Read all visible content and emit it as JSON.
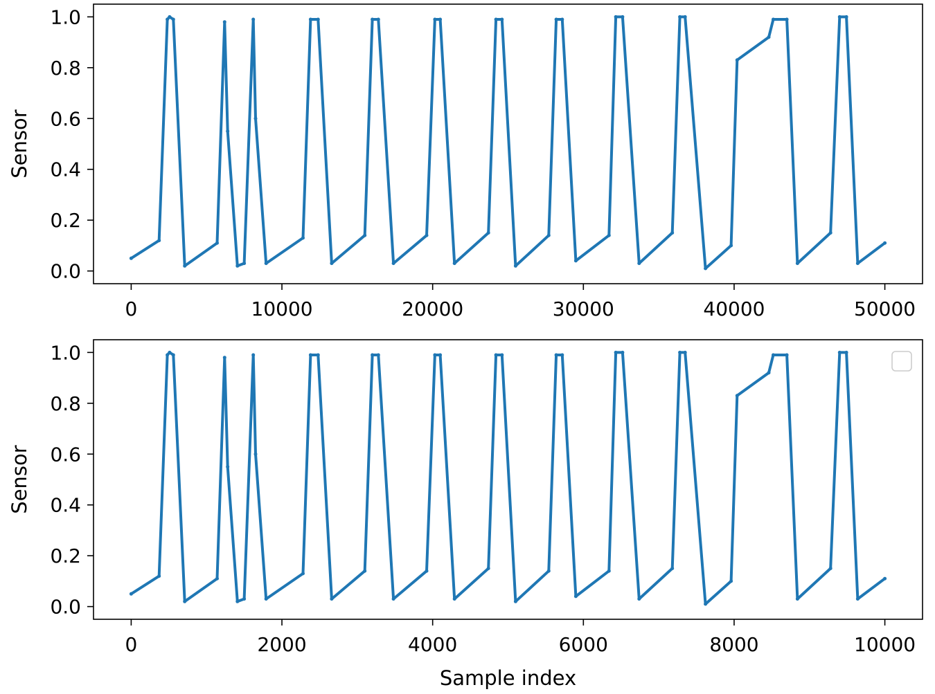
{
  "chart_data": [
    {
      "type": "line",
      "ylabel": "Sensor",
      "xlabel": "",
      "xlim": [
        -2500,
        52500
      ],
      "ylim": [
        -0.05,
        1.05
      ],
      "xticks": [
        0,
        10000,
        20000,
        30000,
        40000,
        50000
      ],
      "xtick_labels": [
        "0",
        "10000",
        "20000",
        "30000",
        "40000",
        "50000"
      ],
      "yticks": [
        0.0,
        0.2,
        0.4,
        0.6,
        0.8,
        1.0
      ],
      "ytick_labels": [
        "0.0",
        "0.2",
        "0.4",
        "0.6",
        "0.8",
        "1.0"
      ],
      "grid": false,
      "legend": false,
      "line_color": "#1f77b4",
      "series": [
        {
          "x": [
            0,
            1850,
            2400,
            2550,
            2800,
            3550,
            5700,
            6200,
            6400,
            7050,
            7500,
            8100,
            8250,
            8950,
            11400,
            11900,
            12400,
            13300,
            15500,
            16000,
            16400,
            17400,
            19600,
            20150,
            20500,
            21450,
            23700,
            24200,
            24600,
            25500,
            27700,
            28200,
            28600,
            29500,
            31700,
            32150,
            32600,
            33700,
            35900,
            36400,
            36750,
            38100,
            39800,
            40200,
            42300,
            42600,
            43500,
            44200,
            46400,
            47000,
            47450,
            48200,
            50000
          ],
          "y": [
            0.05,
            0.12,
            0.99,
            1.0,
            0.99,
            0.02,
            0.11,
            0.98,
            0.55,
            0.02,
            0.03,
            0.99,
            0.6,
            0.03,
            0.13,
            0.99,
            0.99,
            0.03,
            0.14,
            0.99,
            0.99,
            0.03,
            0.14,
            0.99,
            0.99,
            0.03,
            0.15,
            0.99,
            0.99,
            0.02,
            0.14,
            0.99,
            0.99,
            0.04,
            0.14,
            1.0,
            1.0,
            0.03,
            0.15,
            1.0,
            1.0,
            0.01,
            0.1,
            0.83,
            0.92,
            0.99,
            0.99,
            0.03,
            0.15,
            1.0,
            1.0,
            0.03,
            0.11
          ]
        }
      ]
    },
    {
      "type": "line",
      "ylabel": "Sensor",
      "xlabel": "Sample index",
      "xlim": [
        -500,
        10500
      ],
      "ylim": [
        -0.05,
        1.05
      ],
      "xticks": [
        0,
        2000,
        4000,
        6000,
        8000,
        10000
      ],
      "xtick_labels": [
        "0",
        "2000",
        "4000",
        "6000",
        "8000",
        "10000"
      ],
      "yticks": [
        0.0,
        0.2,
        0.4,
        0.6,
        0.8,
        1.0
      ],
      "ytick_labels": [
        "0.0",
        "0.2",
        "0.4",
        "0.6",
        "0.8",
        "1.0"
      ],
      "grid": false,
      "legend": true,
      "legend_position": "top-right",
      "line_color": "#1f77b4",
      "series": [
        {
          "x": [
            0,
            370,
            480,
            510,
            560,
            710,
            1140,
            1240,
            1280,
            1410,
            1500,
            1620,
            1650,
            1790,
            2280,
            2380,
            2480,
            2660,
            3100,
            3200,
            3280,
            3480,
            3920,
            4030,
            4100,
            4290,
            4740,
            4840,
            4920,
            5100,
            5540,
            5640,
            5720,
            5900,
            6340,
            6430,
            6520,
            6740,
            7180,
            7280,
            7350,
            7620,
            7960,
            8040,
            8460,
            8520,
            8700,
            8840,
            9280,
            9400,
            9490,
            9640,
            10000
          ],
          "y": [
            0.05,
            0.12,
            0.99,
            1.0,
            0.99,
            0.02,
            0.11,
            0.98,
            0.55,
            0.02,
            0.03,
            0.99,
            0.6,
            0.03,
            0.13,
            0.99,
            0.99,
            0.03,
            0.14,
            0.99,
            0.99,
            0.03,
            0.14,
            0.99,
            0.99,
            0.03,
            0.15,
            0.99,
            0.99,
            0.02,
            0.14,
            0.99,
            0.99,
            0.04,
            0.14,
            1.0,
            1.0,
            0.03,
            0.15,
            1.0,
            1.0,
            0.01,
            0.1,
            0.83,
            0.92,
            0.99,
            0.99,
            0.03,
            0.15,
            1.0,
            1.0,
            0.03,
            0.11
          ]
        }
      ]
    }
  ]
}
